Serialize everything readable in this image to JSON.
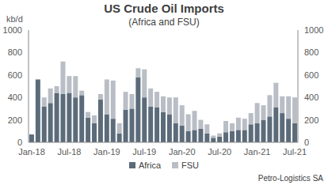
{
  "chart_data": {
    "type": "bar",
    "title": "US Crude Oil Imports",
    "subtitle": "(Africa and FSU)",
    "y_label": "kb/d",
    "annotation": "Petro-Logistics SA",
    "stacked": true,
    "grid": false,
    "legend": "bottom",
    "categories": [
      "Jan-18",
      null,
      null,
      null,
      null,
      null,
      "Jul-18",
      null,
      null,
      null,
      null,
      null,
      "Jan-19",
      null,
      null,
      null,
      null,
      null,
      "Jul-19",
      null,
      null,
      null,
      null,
      null,
      "Jan-20",
      null,
      null,
      null,
      null,
      null,
      "Jul-20",
      null,
      null,
      null,
      null,
      null,
      "Jan-21",
      null,
      null,
      null,
      null,
      null,
      "Jul-21"
    ],
    "series": [
      {
        "name": "Africa",
        "color": "#5b6b7a",
        "values": [
          70,
          560,
          320,
          350,
          440,
          430,
          440,
          400,
          420,
          220,
          170,
          380,
          250,
          210,
          80,
          290,
          300,
          580,
          400,
          320,
          310,
          270,
          250,
          170,
          150,
          100,
          110,
          120,
          80,
          40,
          50,
          90,
          100,
          110,
          110,
          160,
          170,
          200,
          230,
          310,
          260,
          210,
          170
        ]
      },
      {
        "name": "FSU",
        "color": "#b9bec6",
        "values": [
          0,
          0,
          80,
          130,
          60,
          290,
          150,
          190,
          40,
          50,
          70,
          50,
          310,
          340,
          90,
          160,
          130,
          80,
          250,
          160,
          140,
          140,
          150,
          230,
          180,
          150,
          170,
          80,
          80,
          20,
          30,
          100,
          70,
          110,
          100,
          100,
          180,
          130,
          190,
          220,
          150,
          200,
          230
        ]
      }
    ],
    "ylim": [
      0,
      1000
    ],
    "yticks": [
      0,
      200,
      400,
      600,
      800,
      1000
    ],
    "y2lim": [
      0,
      1000
    ],
    "y2ticks": [
      0,
      200,
      400,
      600,
      800,
      1000
    ]
  }
}
